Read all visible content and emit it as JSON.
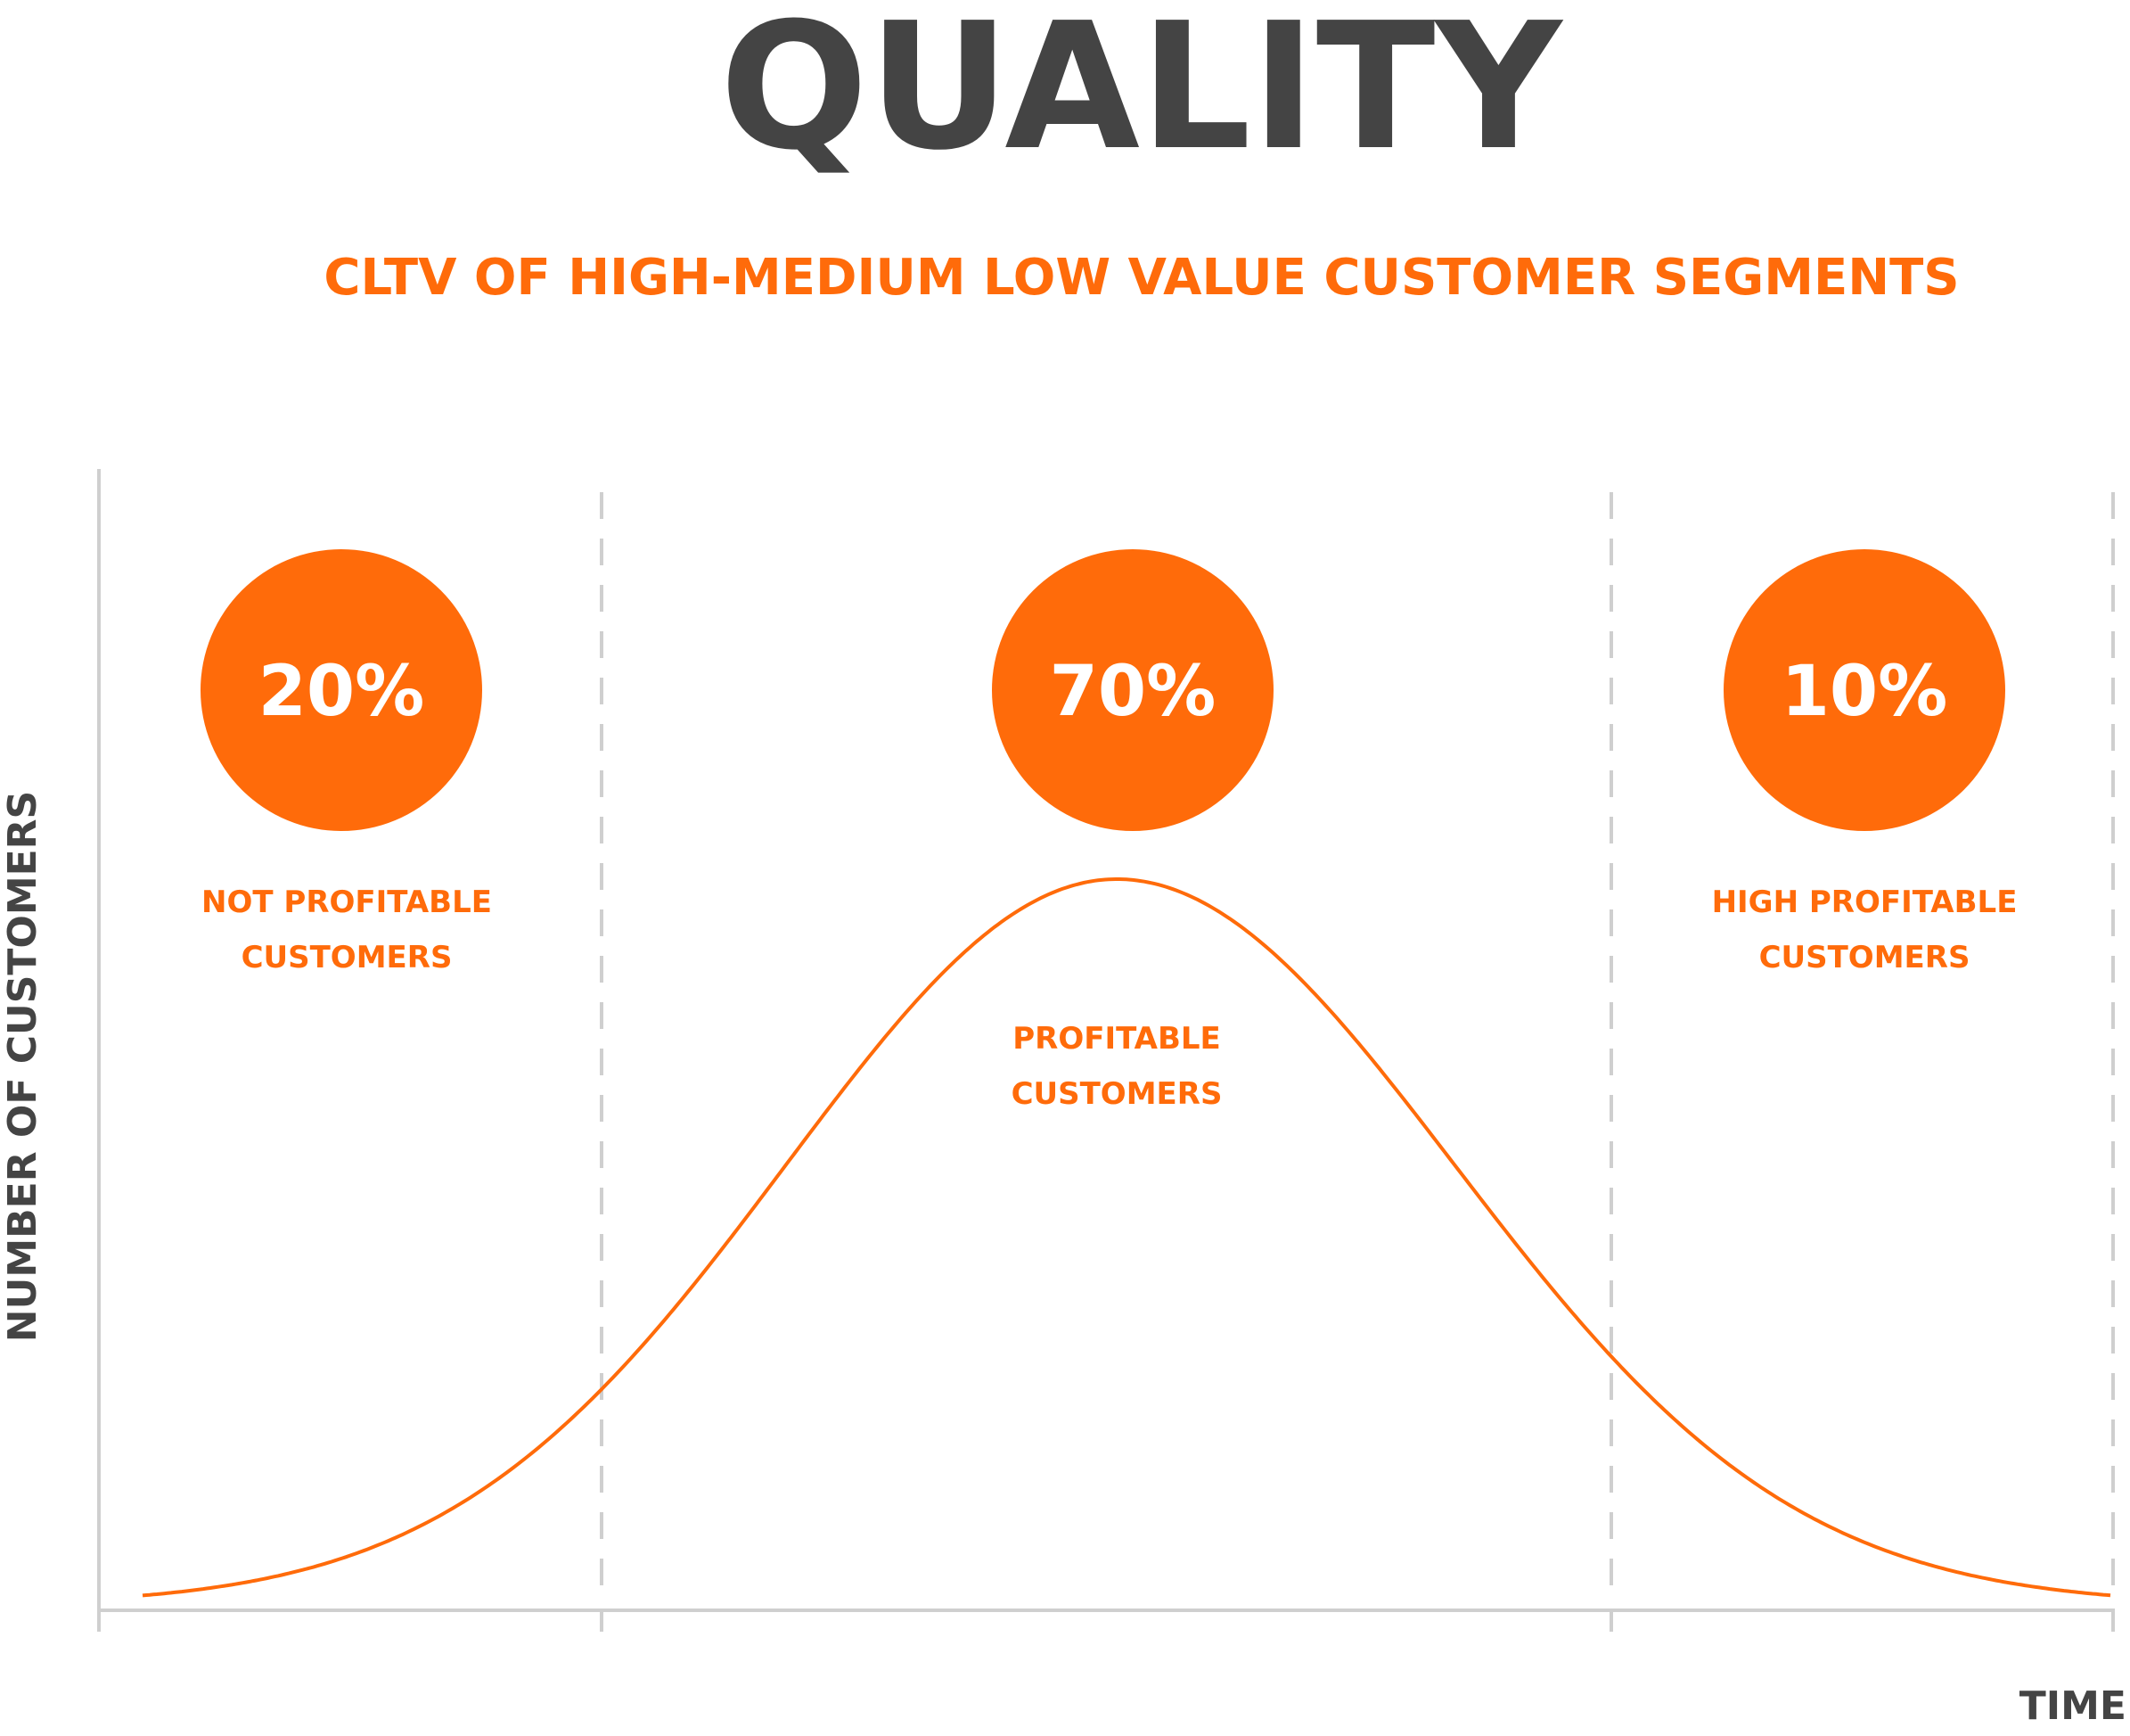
{
  "title": "QUALITY",
  "subtitle": "CLTV OF HIGH-MEDIUM LOW VALUE CUSTOMER SEGMENTS",
  "y_axis_label": "NUMBER OF CUSTOMERS",
  "x_axis_label": "TIME",
  "segments": [
    {
      "percent": "20%",
      "label": [
        "NOT PROFITABLE",
        "CUSTOMERS"
      ]
    },
    {
      "percent": "70%",
      "label": [
        "PROFITABLE",
        "CUSTOMERS"
      ]
    },
    {
      "percent": "10%",
      "label": [
        "HIGH PROFITABLE",
        "CUSTOMERS"
      ]
    }
  ]
}
